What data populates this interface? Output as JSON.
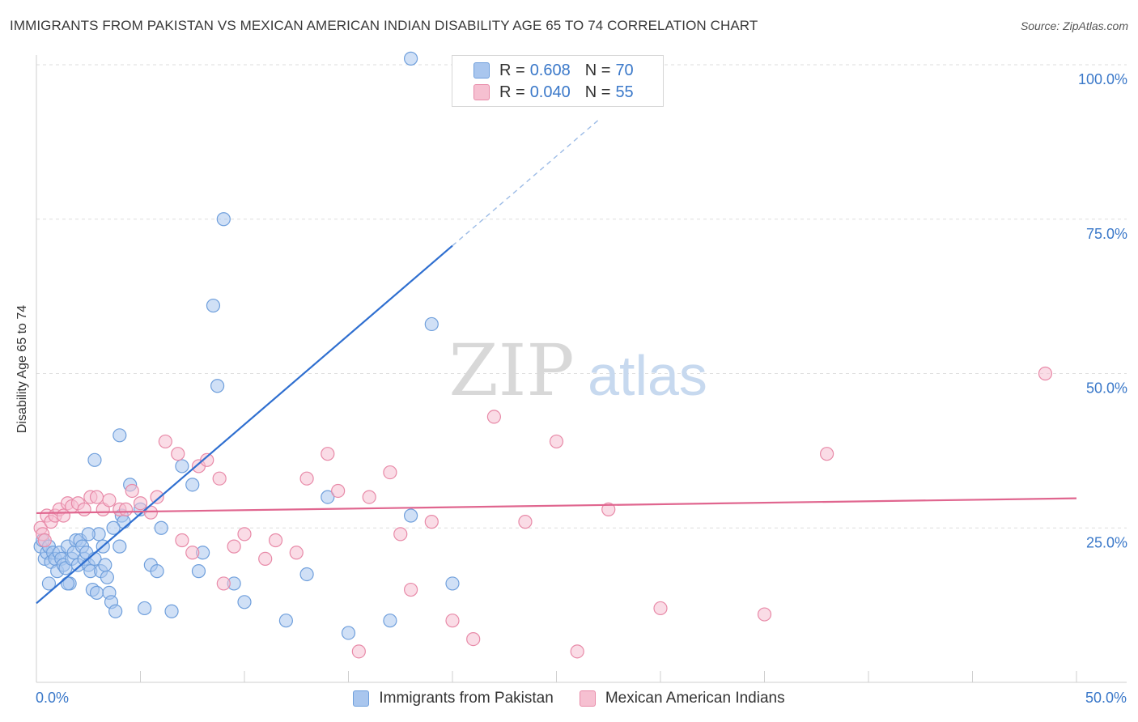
{
  "chart_data": {
    "type": "scatter",
    "title": "IMMIGRANTS FROM PAKISTAN VS MEXICAN AMERICAN INDIAN DISABILITY AGE 65 TO 74 CORRELATION CHART",
    "source": "Source: ZipAtlas.com",
    "xlabel": "",
    "ylabel": "Disability Age 65 to 74",
    "xlim": [
      0,
      50
    ],
    "ylim": [
      0,
      100
    ],
    "x_tick_labels": [
      "0.0%",
      "50.0%"
    ],
    "y_ticks": [
      25,
      50,
      75,
      100
    ],
    "y_tick_labels": [
      "25.0%",
      "50.0%",
      "75.0%",
      "100.0%"
    ],
    "watermark": {
      "zip": "ZIP",
      "atlas": "atlas"
    },
    "legend": [
      {
        "r_label": "R =",
        "r_value": "0.608",
        "n_label": "N =",
        "n_value": "70"
      },
      {
        "r_label": "R =",
        "r_value": "0.040",
        "n_label": "N =",
        "n_value": "55"
      }
    ],
    "series": [
      {
        "name": "Immigrants from Pakistan",
        "color": "#6f9fdc",
        "fill": "#a9c6ee",
        "trend": {
          "x0": 0,
          "y0": 12.8,
          "x1": 20,
          "y1": 70.7,
          "dash_to_x": 27,
          "dash_to_y": 91
        },
        "points": [
          [
            0.2,
            22
          ],
          [
            0.3,
            23
          ],
          [
            0.4,
            20
          ],
          [
            0.5,
            21
          ],
          [
            0.6,
            22
          ],
          [
            0.7,
            19.5
          ],
          [
            0.8,
            21
          ],
          [
            0.9,
            20
          ],
          [
            1.0,
            18
          ],
          [
            1.1,
            21
          ],
          [
            1.2,
            20
          ],
          [
            1.3,
            19
          ],
          [
            1.4,
            18.5
          ],
          [
            1.5,
            22
          ],
          [
            1.6,
            16
          ],
          [
            1.7,
            20
          ],
          [
            1.8,
            21
          ],
          [
            1.9,
            23
          ],
          [
            2.0,
            19
          ],
          [
            2.1,
            23
          ],
          [
            2.2,
            22
          ],
          [
            2.3,
            20
          ],
          [
            2.4,
            21
          ],
          [
            2.5,
            19
          ],
          [
            2.6,
            18
          ],
          [
            2.7,
            15
          ],
          [
            2.8,
            20
          ],
          [
            2.9,
            14.5
          ],
          [
            3.0,
            24
          ],
          [
            3.1,
            18
          ],
          [
            3.2,
            22
          ],
          [
            3.3,
            19
          ],
          [
            3.4,
            17
          ],
          [
            3.5,
            14.5
          ],
          [
            3.6,
            13
          ],
          [
            3.8,
            11.5
          ],
          [
            4.0,
            22
          ],
          [
            4.1,
            27
          ],
          [
            4.2,
            26
          ],
          [
            3.7,
            25
          ],
          [
            2.8,
            36
          ],
          [
            4.0,
            40
          ],
          [
            4.5,
            32
          ],
          [
            5.0,
            28
          ],
          [
            5.2,
            12
          ],
          [
            5.5,
            19
          ],
          [
            6.0,
            25
          ],
          [
            6.5,
            11.5
          ],
          [
            7.0,
            35
          ],
          [
            7.5,
            32
          ],
          [
            7.8,
            18
          ],
          [
            8.0,
            21
          ],
          [
            8.5,
            61
          ],
          [
            8.7,
            48
          ],
          [
            9.0,
            75
          ],
          [
            9.5,
            16
          ],
          [
            10.0,
            13
          ],
          [
            12.0,
            10
          ],
          [
            13.0,
            17.5
          ],
          [
            14.0,
            30
          ],
          [
            15.0,
            8
          ],
          [
            17.0,
            10
          ],
          [
            18.0,
            27
          ],
          [
            19.0,
            58
          ],
          [
            20.0,
            16
          ],
          [
            0.6,
            16
          ],
          [
            1.5,
            16
          ],
          [
            2.5,
            24
          ],
          [
            5.8,
            18
          ],
          [
            18.0,
            101
          ]
        ]
      },
      {
        "name": "Mexican American Indians",
        "color": "#e88aa8",
        "fill": "#f6c0d1",
        "trend": {
          "x0": 0,
          "y0": 27.4,
          "x1": 50,
          "y1": 29.8
        },
        "points": [
          [
            0.2,
            25
          ],
          [
            0.3,
            24
          ],
          [
            0.4,
            23
          ],
          [
            0.5,
            27
          ],
          [
            0.7,
            26
          ],
          [
            0.9,
            27
          ],
          [
            1.1,
            28
          ],
          [
            1.3,
            27
          ],
          [
            1.5,
            29
          ],
          [
            1.7,
            28.5
          ],
          [
            2.0,
            29
          ],
          [
            2.3,
            28
          ],
          [
            2.6,
            30
          ],
          [
            2.9,
            30
          ],
          [
            3.2,
            28
          ],
          [
            3.5,
            29.5
          ],
          [
            4.0,
            28
          ],
          [
            4.3,
            28
          ],
          [
            4.6,
            31
          ],
          [
            5.0,
            29
          ],
          [
            5.5,
            27.5
          ],
          [
            5.8,
            30
          ],
          [
            6.2,
            39
          ],
          [
            6.8,
            37
          ],
          [
            7.0,
            23
          ],
          [
            7.5,
            21
          ],
          [
            7.8,
            35
          ],
          [
            8.2,
            36
          ],
          [
            8.8,
            33
          ],
          [
            9.0,
            16
          ],
          [
            9.5,
            22
          ],
          [
            10.0,
            24
          ],
          [
            11.0,
            20
          ],
          [
            11.5,
            23
          ],
          [
            12.5,
            21
          ],
          [
            13.0,
            33
          ],
          [
            14.0,
            37
          ],
          [
            14.5,
            31
          ],
          [
            15.5,
            5
          ],
          [
            16.0,
            30
          ],
          [
            17.0,
            34
          ],
          [
            17.5,
            24
          ],
          [
            18.0,
            15
          ],
          [
            19.0,
            26
          ],
          [
            20.0,
            10
          ],
          [
            21.0,
            7
          ],
          [
            22.0,
            43
          ],
          [
            23.5,
            26
          ],
          [
            25.0,
            39
          ],
          [
            26.0,
            5
          ],
          [
            27.5,
            28
          ],
          [
            30.0,
            12
          ],
          [
            35.0,
            11
          ],
          [
            38.0,
            37
          ],
          [
            48.5,
            50
          ]
        ]
      }
    ]
  },
  "bottom_legend": {
    "item1": "Immigrants from Pakistan",
    "item2": "Mexican American Indians"
  }
}
